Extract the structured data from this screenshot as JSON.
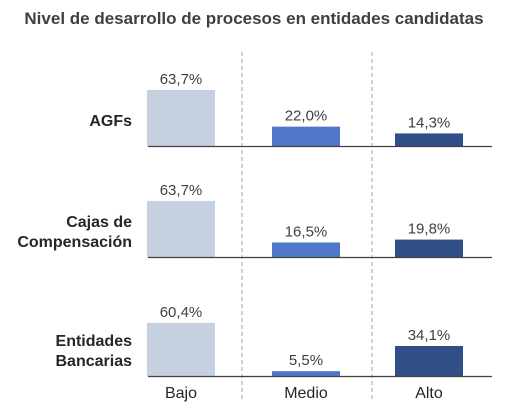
{
  "chart_data": {
    "type": "bar",
    "title": "Nivel de desarrollo de procesos en entidades candidatas",
    "categories": [
      "Bajo",
      "Medio",
      "Alto"
    ],
    "groups": [
      {
        "label_lines": [
          "AGFs"
        ],
        "values": [
          63.7,
          22.0,
          14.3
        ],
        "value_labels": [
          "63,7%",
          "22,0%",
          "14,3%"
        ]
      },
      {
        "label_lines": [
          "Cajas de",
          "Compensación"
        ],
        "values": [
          63.7,
          16.5,
          19.8
        ],
        "value_labels": [
          "63,7%",
          "16,5%",
          "19,8%"
        ]
      },
      {
        "label_lines": [
          "Entidades",
          "Bancarias"
        ],
        "values": [
          60.4,
          5.5,
          34.1
        ],
        "value_labels": [
          "60,4%",
          "5,5%",
          "34,1%"
        ]
      }
    ],
    "colors": [
      "#c5d0e1",
      "#4f79c8",
      "#2f4f86"
    ],
    "ylim": [
      0,
      100
    ],
    "grid": false,
    "legend": "none"
  }
}
